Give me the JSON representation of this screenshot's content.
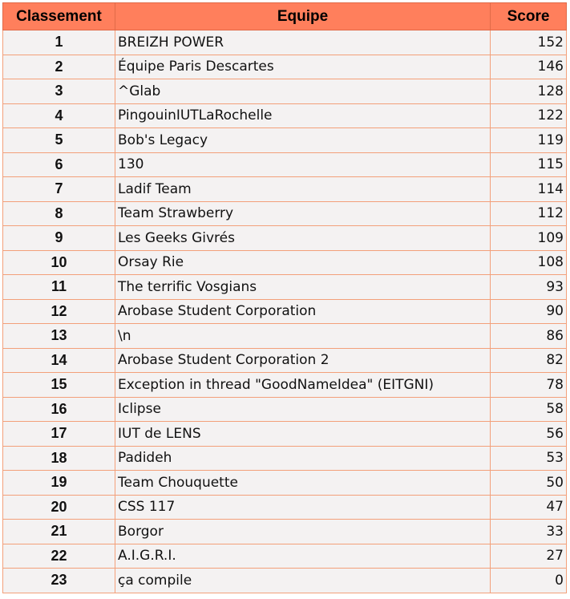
{
  "header": {
    "rank": "Classement",
    "team": "Equipe",
    "score": "Score"
  },
  "colors": {
    "header_bg": "#ff7f5c",
    "cell_bg": "#f4f2f2",
    "border": "#f3a07a"
  },
  "rows": [
    {
      "rank": "1",
      "team": "BREIZH POWER",
      "score": "152"
    },
    {
      "rank": "2",
      "team": "Équipe Paris Descartes",
      "score": "146"
    },
    {
      "rank": "3",
      "team": "^Glab",
      "score": "128"
    },
    {
      "rank": "4",
      "team": "PingouinIUTLaRochelle",
      "score": "122"
    },
    {
      "rank": "5",
      "team": "Bob's Legacy",
      "score": "119"
    },
    {
      "rank": "6",
      "team": "130",
      "score": "115"
    },
    {
      "rank": "7",
      "team": "Ladif Team",
      "score": "114"
    },
    {
      "rank": "8",
      "team": "Team Strawberry",
      "score": "112"
    },
    {
      "rank": "9",
      "team": "Les Geeks Givrés",
      "score": "109"
    },
    {
      "rank": "10",
      "team": "Orsay Rie",
      "score": "108"
    },
    {
      "rank": "11",
      "team": "The terrific Vosgians",
      "score": "93"
    },
    {
      "rank": "12",
      "team": "Arobase Student Corporation",
      "score": "90"
    },
    {
      "rank": "13",
      "team": "\\n",
      "score": "86"
    },
    {
      "rank": "14",
      "team": "Arobase Student Corporation 2",
      "score": "82"
    },
    {
      "rank": "15",
      "team": "Exception in thread \"GoodNameIdea\" (EITGNI)",
      "score": "78"
    },
    {
      "rank": "16",
      "team": "Iclipse",
      "score": "58"
    },
    {
      "rank": "17",
      "team": "IUT de LENS",
      "score": "56"
    },
    {
      "rank": "18",
      "team": "Padideh",
      "score": "53"
    },
    {
      "rank": "19",
      "team": "Team Chouquette",
      "score": "50"
    },
    {
      "rank": "20",
      "team": "CSS 117",
      "score": "47"
    },
    {
      "rank": "21",
      "team": "Borgor",
      "score": "33"
    },
    {
      "rank": "22",
      "team": "A.I.G.R.I.",
      "score": "27"
    },
    {
      "rank": "23",
      "team": "ça compile",
      "score": "0"
    }
  ]
}
